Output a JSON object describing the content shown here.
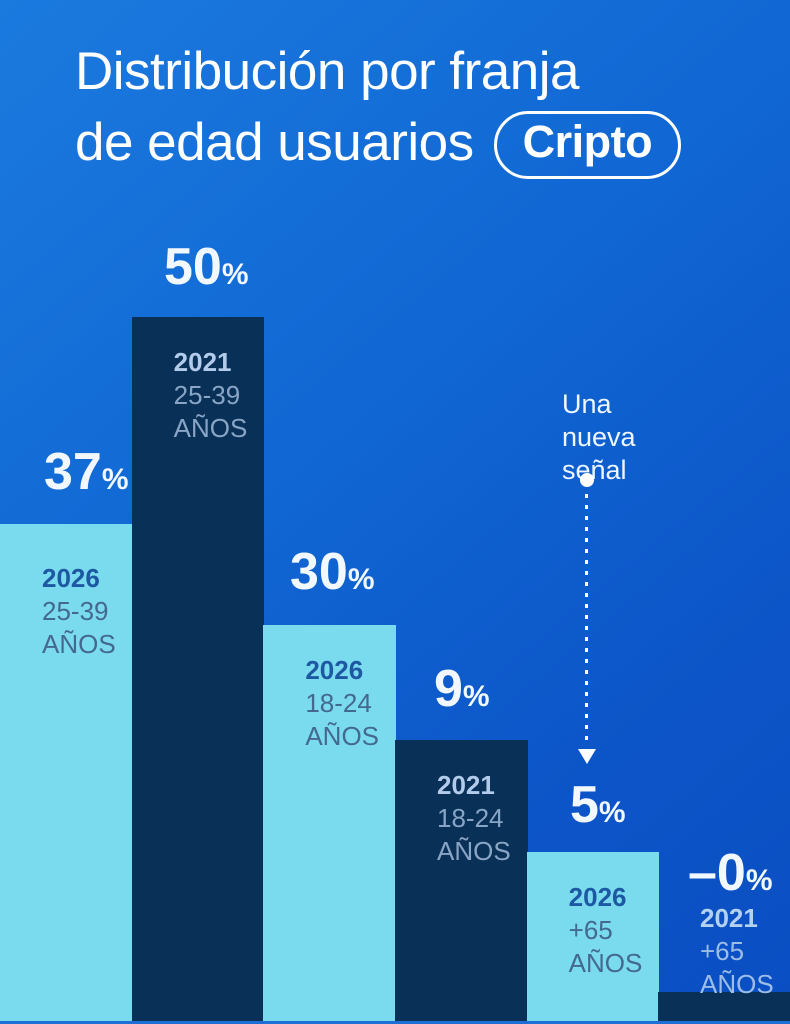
{
  "title": {
    "line1": "Distribución por franja",
    "line2": "de edad usuarios",
    "badge": "Cripto"
  },
  "annotation": {
    "line1": "Una",
    "line2": "nueva",
    "line3": "señal"
  },
  "chart_data": {
    "type": "bar",
    "title": "Distribución por franja de edad usuarios (Cripto)",
    "unit": "%",
    "categories": [
      "25-39 años · 2026",
      "25-39 años · 2021",
      "18-24 años · 2026",
      "18-24 años · 2021",
      "+65 años · 2026",
      "+65 años · 2021"
    ],
    "values": [
      37,
      50,
      30,
      9,
      5,
      0
    ],
    "legend": [
      "2026 (barras celestes)",
      "2021 (barras azul marino)"
    ],
    "annotation": {
      "text": "Una nueva señal",
      "points_to": "+65 años 2026 (5%)"
    },
    "bars": [
      {
        "value": 37,
        "value_display": "37",
        "percent_sign": "%",
        "year": "2026",
        "age": "25-39",
        "unit_word": "AÑOS",
        "style": "light"
      },
      {
        "value": 50,
        "value_display": "50",
        "percent_sign": "%",
        "year": "2021",
        "age": "25-39",
        "unit_word": "AÑOS",
        "style": "dark"
      },
      {
        "value": 30,
        "value_display": "30",
        "percent_sign": "%",
        "year": "2026",
        "age": "18-24",
        "unit_word": "AÑOS",
        "style": "light"
      },
      {
        "value": 9,
        "value_display": "9",
        "percent_sign": "%",
        "year": "2021",
        "age": "18-24",
        "unit_word": "AÑOS",
        "style": "dark"
      },
      {
        "value": 5,
        "value_display": "5",
        "percent_sign": "%",
        "year": "2026",
        "age": "+65",
        "unit_word": "AÑOS",
        "style": "light"
      },
      {
        "value": 0,
        "value_display": "–0",
        "percent_sign": "%",
        "year": "2021",
        "age": "+65",
        "unit_word": "AÑOS",
        "style": "dark"
      }
    ]
  },
  "colors": {
    "background_top": "#1b7ade",
    "background_bottom": "#0a4ec2",
    "bar_light": "#7adbee",
    "bar_dark": "#093056",
    "text_primary": "#ffffff"
  }
}
